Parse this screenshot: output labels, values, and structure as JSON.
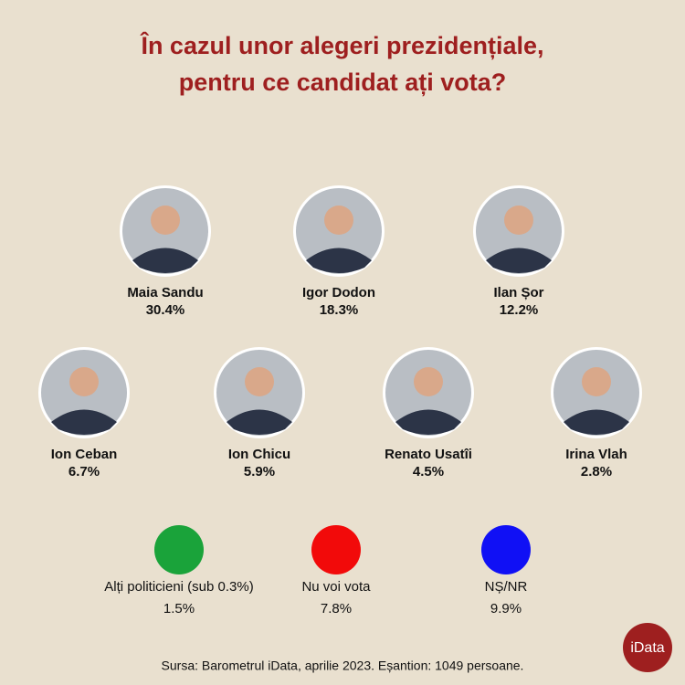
{
  "title": [
    "În cazul unor alegeri prezidențiale,",
    "pentru ce candidat ați vota?"
  ],
  "candidates": [
    {
      "name": "Maia Sandu",
      "share": "30.4%"
    },
    {
      "name": "Igor Dodon",
      "share": "18.3%"
    },
    {
      "name": "Ilan Șor",
      "share": "12.2%"
    },
    {
      "name": "Ion Ceban",
      "share": "6.7%"
    },
    {
      "name": "Ion Chicu",
      "share": "5.9%"
    },
    {
      "name": "Renato Usatîi",
      "share": "4.5%"
    },
    {
      "name": "Irina Vlah",
      "share": "2.8%"
    }
  ],
  "options": [
    {
      "name": "Alți politicieni (sub 0.3%)",
      "share": "1.5%",
      "color": "#1aa33a"
    },
    {
      "name": "Nu voi vota",
      "share": "7.8%",
      "color": "#f20a0a"
    },
    {
      "name": "NȘ/NR",
      "share": "9.9%",
      "color": "#1010f5"
    }
  ],
  "footer": "Sursa: Barometrul iData, aprilie 2023. Eșantion: 1049 persoane.",
  "logo": "iData"
}
